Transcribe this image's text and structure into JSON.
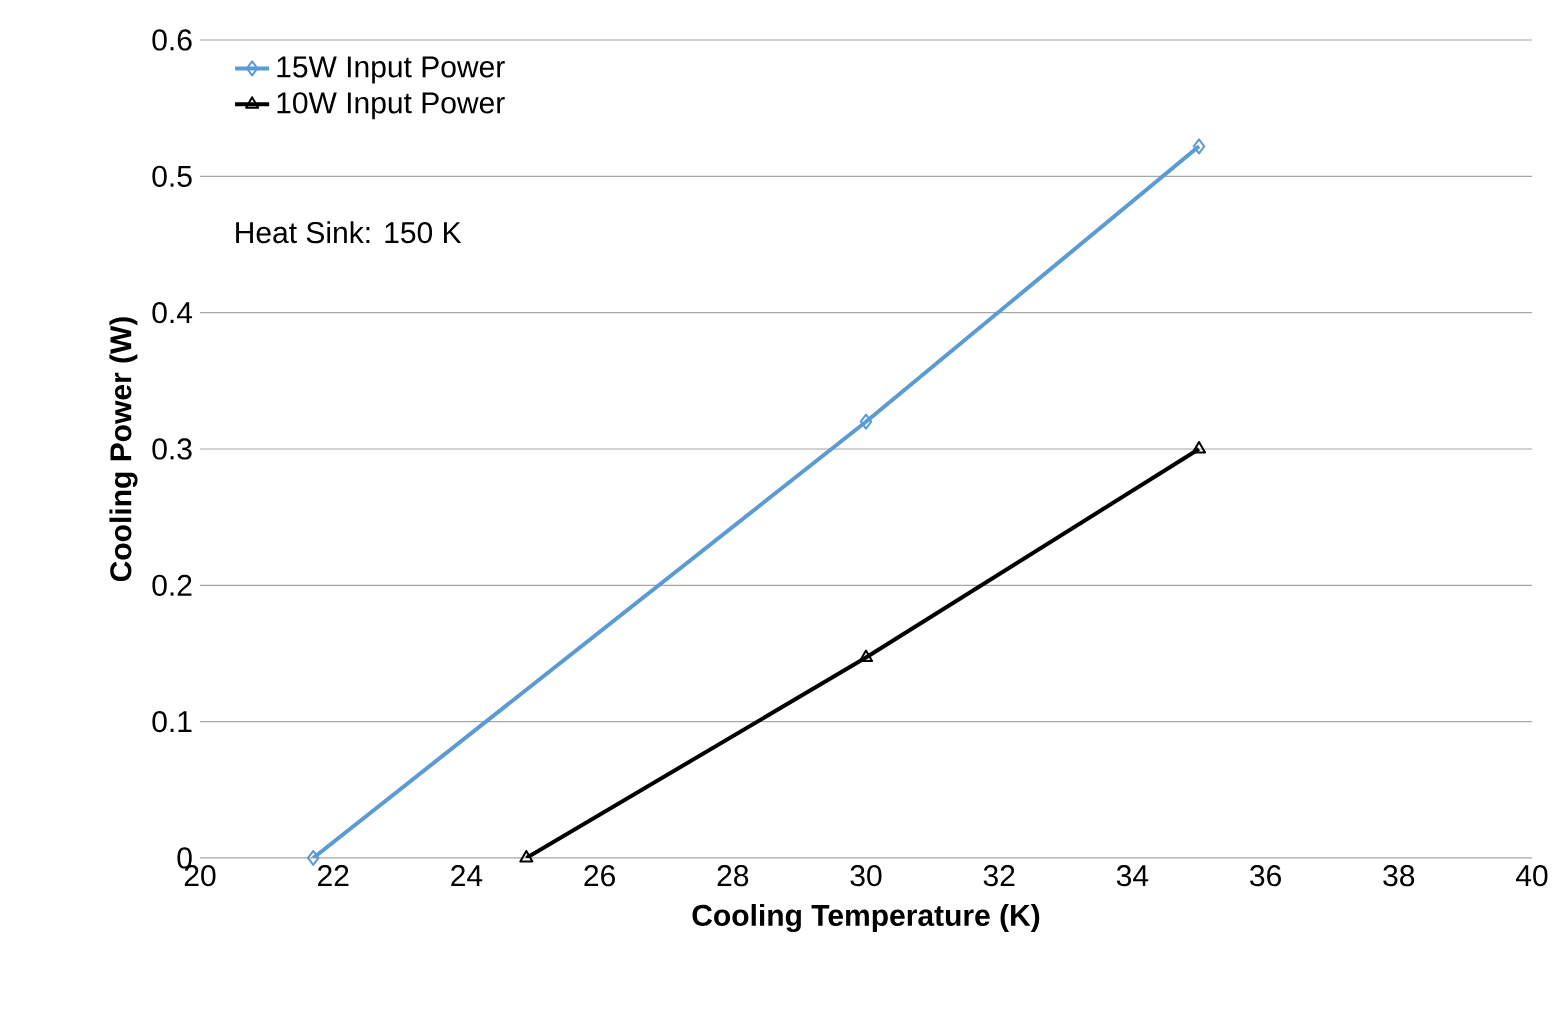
{
  "chart_data": {
    "type": "line",
    "xlabel": "Cooling Temperature (K)",
    "ylabel": "Cooling Power (W)",
    "xlim": [
      20,
      40
    ],
    "xticks": [
      20,
      22,
      24,
      26,
      28,
      30,
      32,
      34,
      36,
      38,
      40
    ],
    "ylim": [
      0,
      0.6
    ],
    "yticks": [
      0,
      0.1,
      0.2,
      0.3,
      0.4,
      0.5,
      0.6
    ],
    "grid": "y",
    "legend": "top left",
    "line_style": "solid",
    "annotations": [
      "Heat Sink: 150 K"
    ],
    "series": [
      {
        "name": "15W Input Power",
        "color": "#5b9bd5",
        "marker": "diamond",
        "x": [
          21.7,
          30,
          35
        ],
        "values": [
          0,
          0.32,
          0.522
        ]
      },
      {
        "name": "10W Input Power",
        "color": "#000000",
        "marker": "triangle",
        "x": [
          24.9,
          30,
          35
        ],
        "values": [
          0,
          0.147,
          0.3
        ]
      }
    ]
  }
}
